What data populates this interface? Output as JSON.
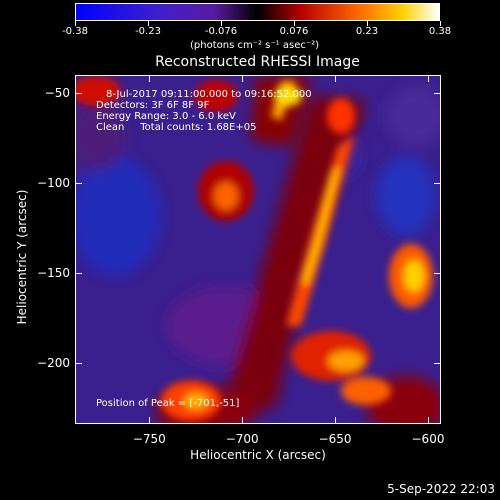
{
  "colorbar": {
    "tick_labels": [
      "-0.38",
      "-0.23",
      "-0.076",
      "0.076",
      "0.23",
      "0.38"
    ],
    "units": "(photons cm⁻² s⁻¹ asec⁻²)"
  },
  "title": "Reconstructed RHESSI Image",
  "annotations": {
    "line1": "8-Jul-2017 09:11:00.000 to 09:16:52.000",
    "line2": "Detectors: 3F 6F 8F 9F",
    "line3": "Energy Range: 3.0 - 6.0 keV",
    "line4": "Clean     Total counts: 1.68E+05",
    "peak": "Position of Peak = [-701,-51]"
  },
  "axes": {
    "xlabel": "Heliocentric X (arcsec)",
    "ylabel": "Heliocentric Y (arcsec)",
    "x_ticks": [
      "-750",
      "-700",
      "-650",
      "-600"
    ],
    "y_ticks": [
      "-50",
      "-100",
      "-150",
      "-200"
    ]
  },
  "footer": {
    "timestamp": "5-Sep-2022 22:03"
  },
  "chart_data": {
    "type": "heatmap",
    "title": "Reconstructed RHESSI Image",
    "xlabel": "Heliocentric X (arcsec)",
    "ylabel": "Heliocentric Y (arcsec)",
    "xlim": [
      -790,
      -593
    ],
    "ylim": [
      -234,
      -40
    ],
    "colorbar_range": [
      -0.38,
      0.38
    ],
    "colorscale": "blue-purple-red-yellow-white",
    "peak_position": [
      -701,
      -51
    ]
  }
}
